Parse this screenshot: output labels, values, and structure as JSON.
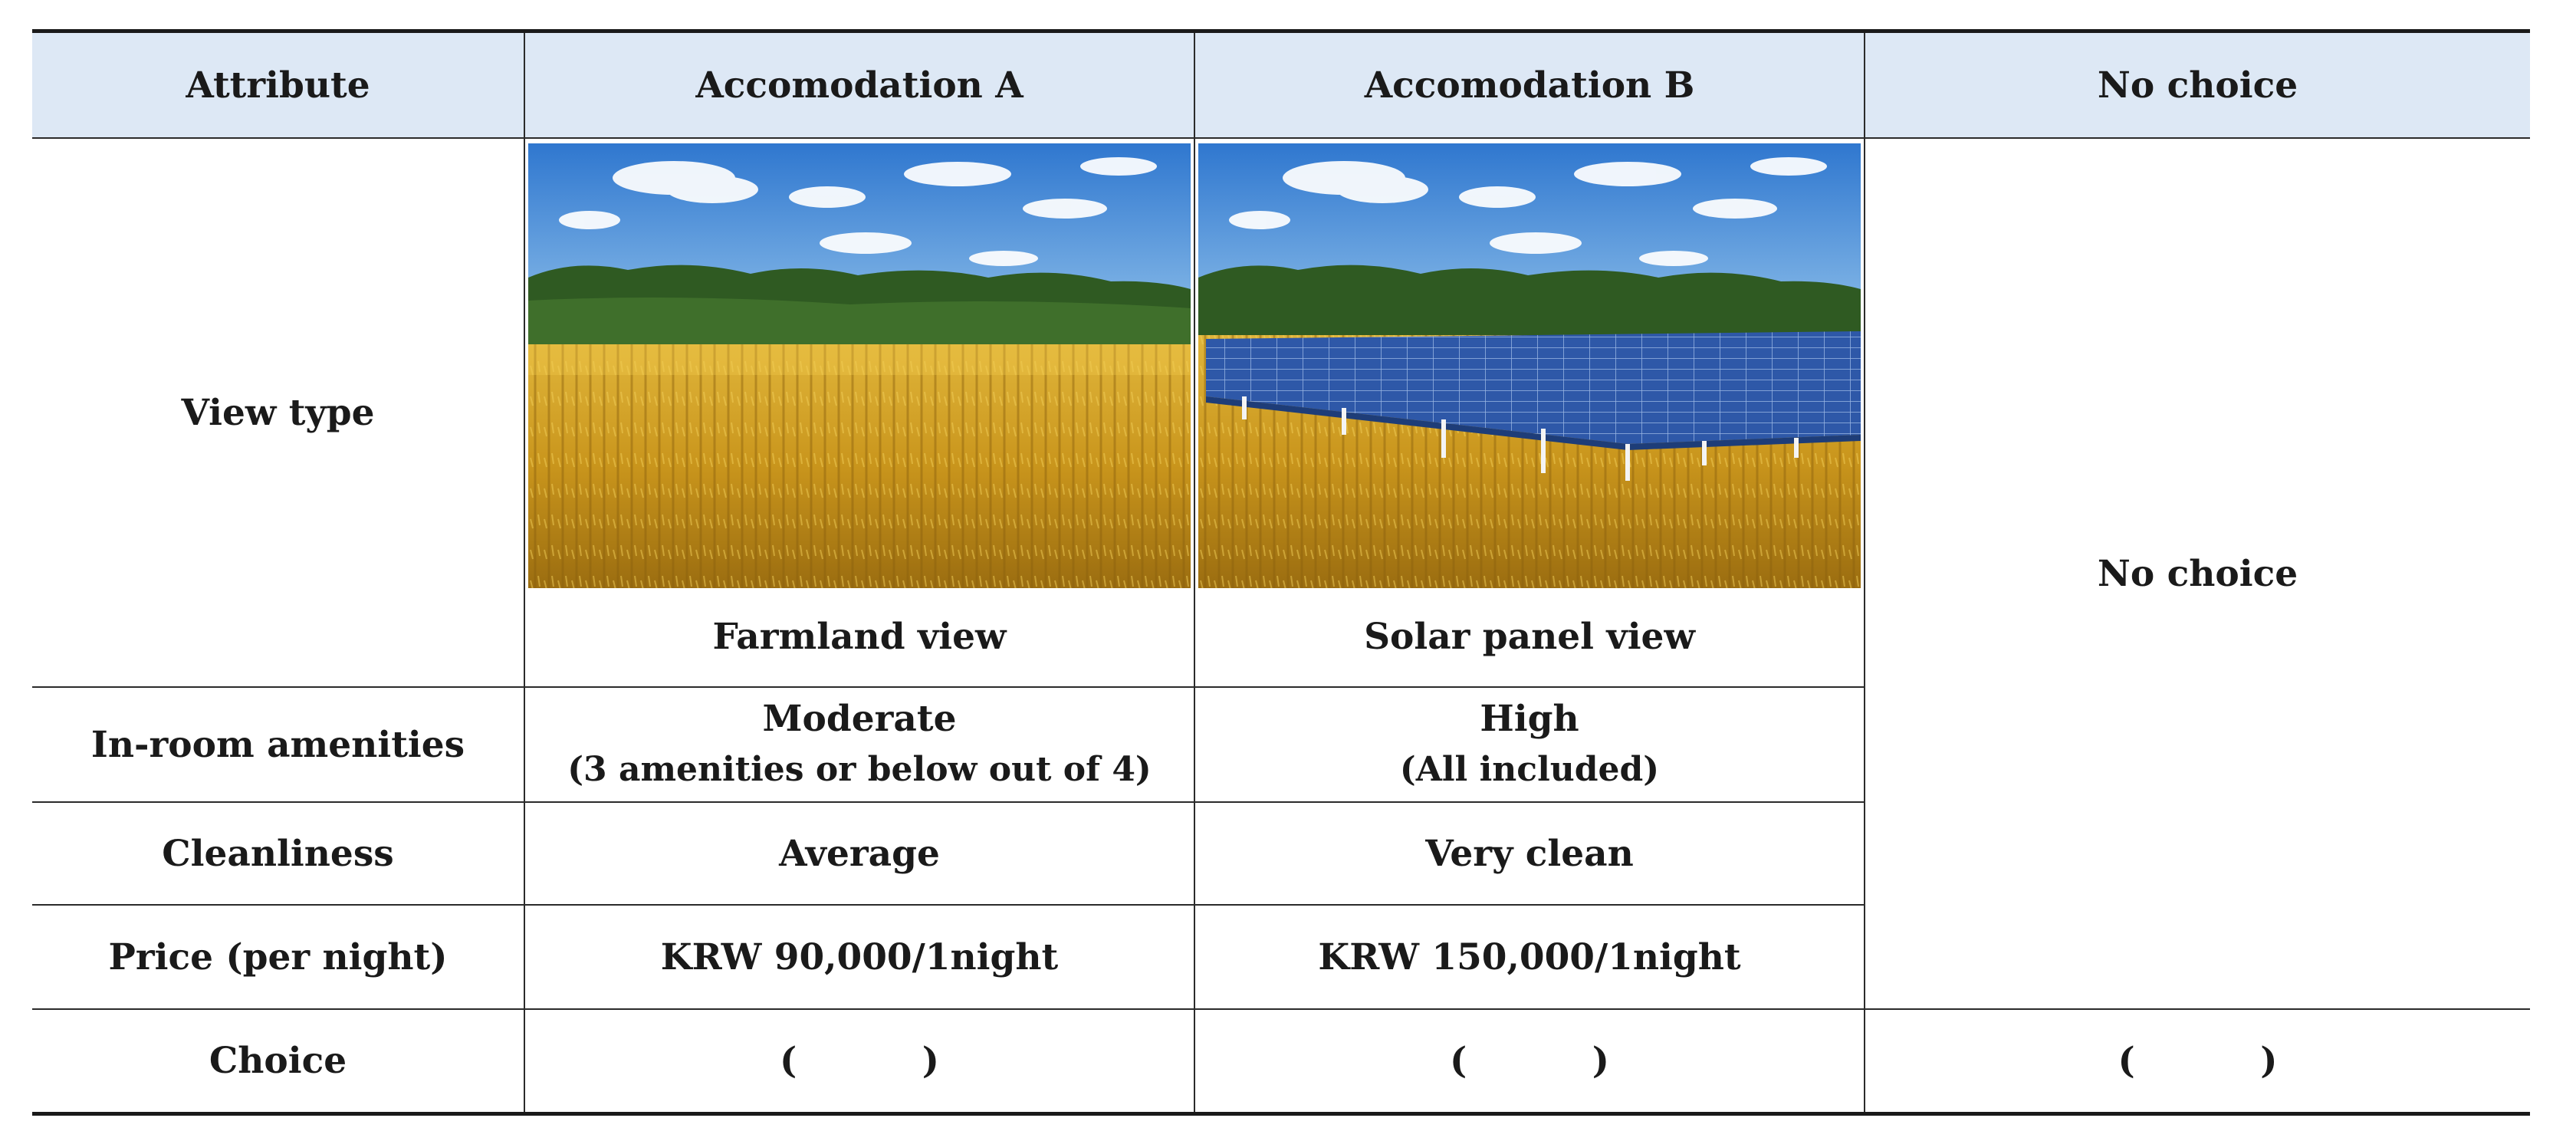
{
  "headers": {
    "attribute": "Attribute",
    "option_a": "Accomodation A",
    "option_b": "Accomodation B",
    "no_choice": "No choice"
  },
  "rows": {
    "view_type": {
      "label": "View type",
      "a": "Farmland view",
      "b": "Solar panel view",
      "no_choice": "No choice"
    },
    "amenities": {
      "label": "In-room amenities",
      "a_main": "Moderate",
      "a_sub": "(3 amenities or below out of 4)",
      "b_main": "High",
      "b_sub": "(All included)"
    },
    "cleanliness": {
      "label": "Cleanliness",
      "a": "Average",
      "b": "Very clean"
    },
    "price": {
      "label": "Price (per night)",
      "a": "KRW 90,000/1night",
      "b": "KRW 150,000/1night"
    },
    "choice": {
      "label": "Choice",
      "a": "(          )",
      "b": "(          )",
      "no_choice": "(          )"
    }
  },
  "images": {
    "a": "farmland-photo",
    "b": "solar-panel-photo"
  },
  "colors": {
    "header_bg": "#dde8f5",
    "sky": "#3f86d6",
    "field": "#d9a320",
    "trees": "#2f5a22",
    "panel": "#2e58a8"
  }
}
